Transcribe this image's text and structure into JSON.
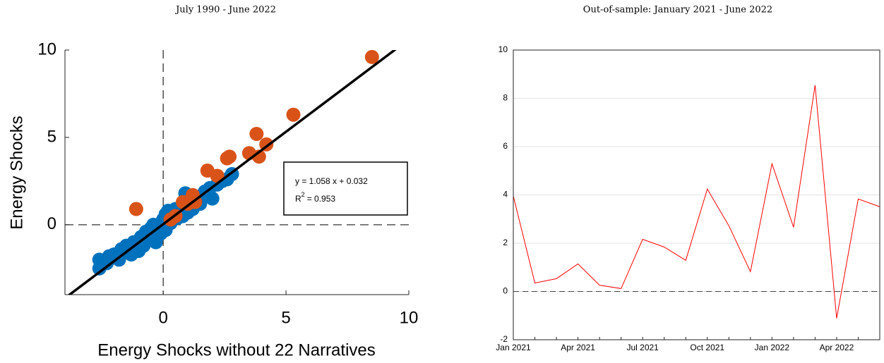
{
  "chart_data": [
    {
      "type": "scatter",
      "title": "July 1990 - June 2022",
      "xlabel": "Energy Shocks without 22 Narratives",
      "ylabel": "Energy Shocks",
      "xlim": [
        -4,
        10
      ],
      "ylim": [
        -4,
        10
      ],
      "xticks": [
        0,
        5,
        10
      ],
      "yticks": [
        0,
        5,
        10
      ],
      "series": [
        {
          "color": "#0072BD",
          "x": [
            -2.6,
            -2.6,
            -2.3,
            -2.0,
            -1.8,
            -1.7,
            -1.5,
            -1.3,
            -1.2,
            -1.0,
            -0.9,
            -0.8,
            -0.7,
            -0.6,
            -0.5,
            -0.4,
            -0.3,
            -0.2,
            -0.1,
            0.0,
            0.1,
            0.2,
            0.3,
            0.4,
            0.5,
            0.6,
            0.7,
            0.8,
            0.9,
            1.0,
            1.1,
            1.2,
            1.4,
            1.5,
            1.7,
            1.9,
            2.0,
            2.2,
            2.4,
            2.6,
            2.8,
            -0.4,
            0.1,
            -1.6,
            -2.2
          ],
          "values": [
            -2.5,
            -2.0,
            -2.2,
            -1.7,
            -2.0,
            -1.4,
            -1.2,
            -1.7,
            -1.0,
            -1.5,
            -0.7,
            -1.2,
            -0.4,
            -0.9,
            -0.2,
            -0.6,
            -1.0,
            -0.1,
            -0.5,
            0.3,
            -0.3,
            0.8,
            0.1,
            0.6,
            0.9,
            0.4,
            1.0,
            0.5,
            1.8,
            0.7,
            1.4,
            0.9,
            1.6,
            1.2,
            1.9,
            2.1,
            1.5,
            2.3,
            2.5,
            2.6,
            2.9,
            0.0,
            0.6,
            -1.5,
            -1.8
          ]
        },
        {
          "color": "#D95319",
          "x": [
            8.5,
            5.3,
            4.2,
            3.8,
            3.9,
            3.5,
            2.7,
            2.6,
            2.2,
            1.8,
            -1.1,
            1.2,
            1.0,
            0.8,
            0.5,
            0.3,
            1.3
          ],
          "values": [
            9.6,
            6.3,
            4.6,
            5.2,
            3.9,
            4.1,
            3.9,
            3.8,
            2.8,
            3.1,
            0.9,
            1.7,
            1.2,
            1.3,
            0.5,
            0.3,
            1.3
          ]
        }
      ],
      "fit": {
        "slope": 1.058,
        "intercept": 0.032,
        "color": "#000000"
      },
      "annotation": {
        "equation": "y = 1.058 x + 0.032",
        "r2_base": "R",
        "r2_sup": "2",
        "r2_value": "= 0.953"
      }
    },
    {
      "type": "line",
      "title": "Out-of-sample: January 2021 - June 2022",
      "categories": [
        "Jan 2021",
        null,
        null,
        "Apr 2021",
        null,
        null,
        "Jul 2021",
        null,
        null,
        "Oct 2021",
        null,
        null,
        "Jan 2022",
        null,
        null,
        "Apr 2022",
        null,
        null
      ],
      "ylim": [
        -2,
        10
      ],
      "yticks": [
        -2,
        0,
        2,
        4,
        6,
        8,
        10
      ],
      "grid": true,
      "series": [
        {
          "color": "#FF0000",
          "values": [
            3.95,
            0.35,
            0.53,
            1.14,
            0.26,
            0.12,
            2.16,
            1.84,
            1.29,
            4.24,
            2.72,
            0.82,
            5.29,
            2.66,
            8.54,
            -1.11,
            3.83,
            3.51
          ]
        }
      ]
    }
  ]
}
